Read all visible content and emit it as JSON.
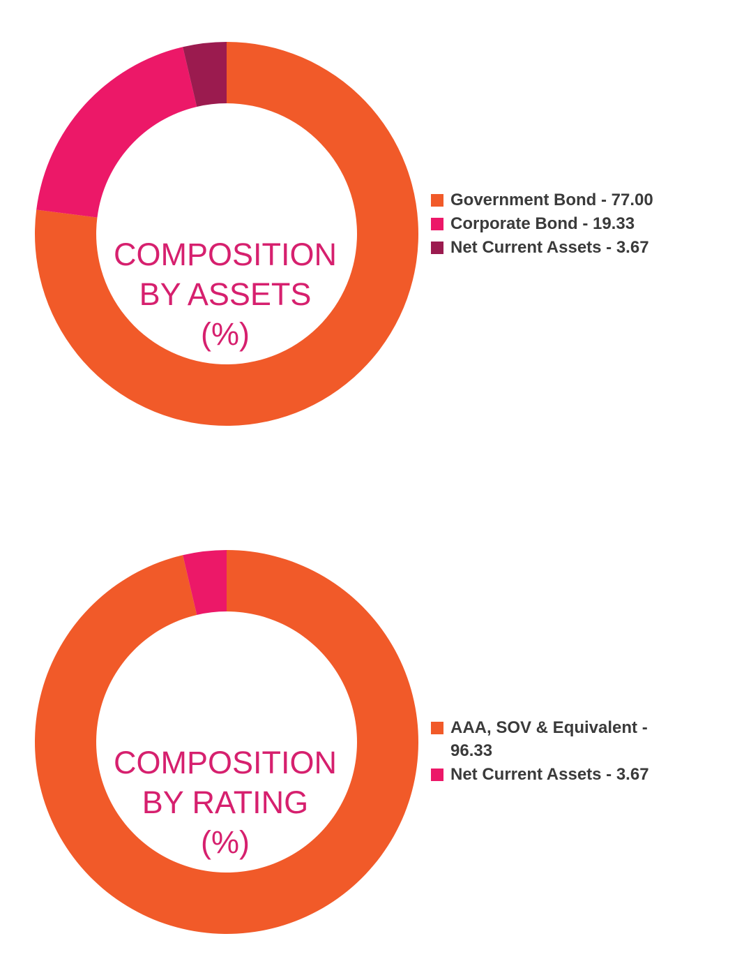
{
  "chart_data": [
    {
      "type": "pie",
      "donut": true,
      "center_title_lines": [
        "COMPOSITION",
        "BY ASSETS",
        "(%)"
      ],
      "slices": [
        {
          "label": "Government Bond - 77.00",
          "value": 77.0,
          "color": "#f15a29"
        },
        {
          "label": "Corporate Bond - 19.33",
          "value": 19.33,
          "color": "#ec1868"
        },
        {
          "label": "Net Current Assets - 3.67",
          "value": 3.67,
          "color": "#9b1b4f"
        }
      ],
      "legend_position": "right"
    },
    {
      "type": "pie",
      "donut": true,
      "center_title_lines": [
        "COMPOSITION",
        "BY RATING",
        "(%)"
      ],
      "slices": [
        {
          "label": "AAA, SOV & Equivalent - 96.33",
          "value": 96.33,
          "color": "#f15a29"
        },
        {
          "label": "Net Current Assets - 3.67",
          "value": 3.67,
          "color": "#ec1868"
        }
      ],
      "legend_position": "right"
    }
  ],
  "colors": {
    "center_text": "#d6206e",
    "legend_text": "#3a3a3a"
  }
}
